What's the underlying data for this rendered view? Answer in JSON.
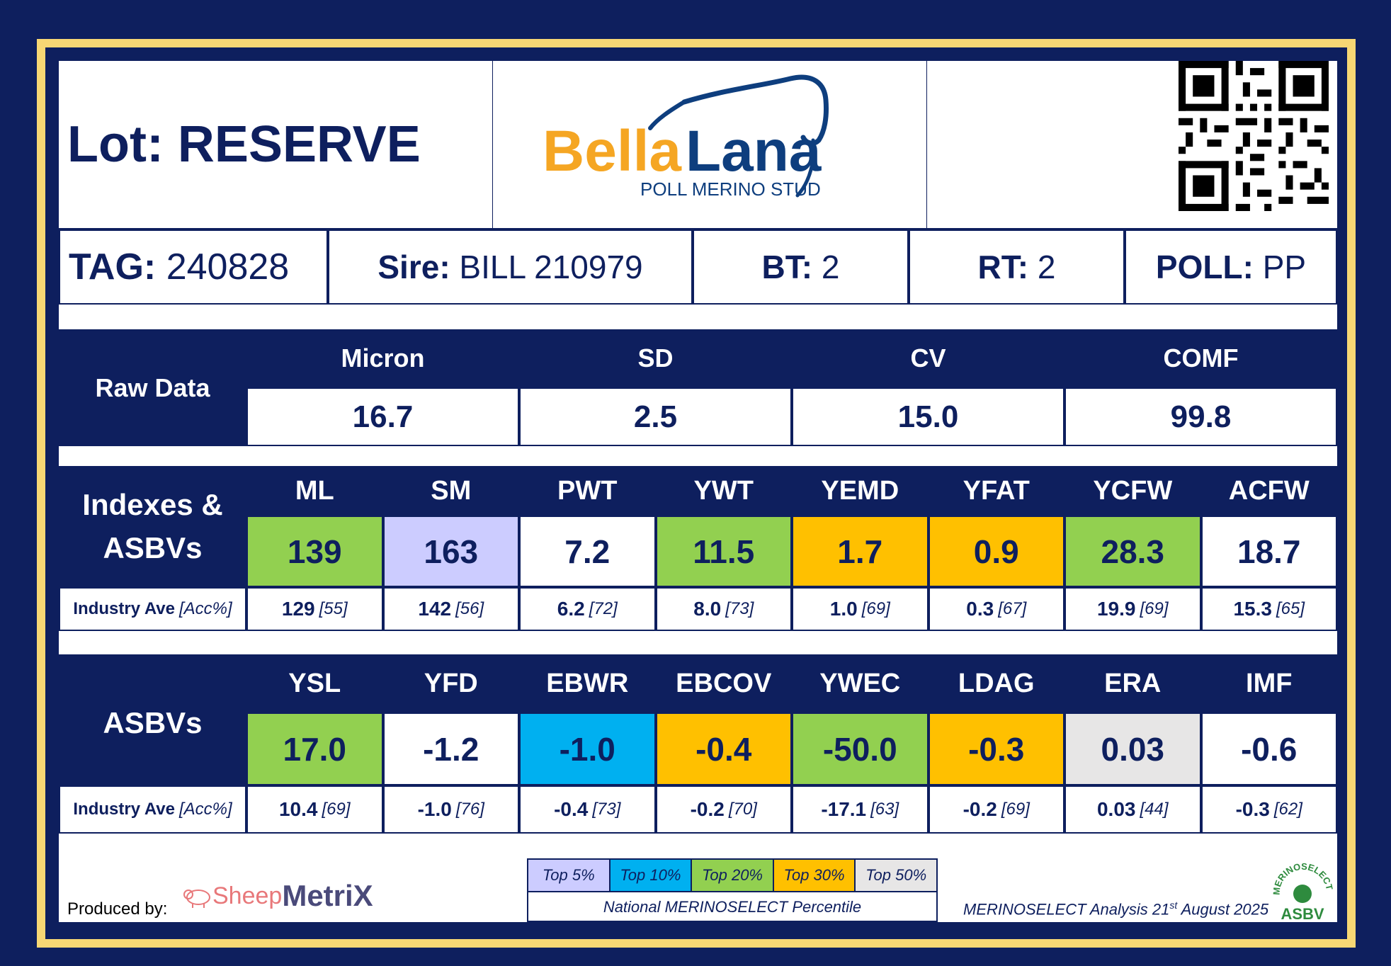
{
  "header": {
    "lot": "Lot: RESERVE",
    "logo": {
      "bella": "Bella",
      "lana": "Lana",
      "sub": "POLL MERINO STUD"
    }
  },
  "tag_row": [
    {
      "key": "TAG:",
      "value": "240828"
    },
    {
      "key": "Sire:",
      "value": "BILL 210979"
    },
    {
      "key": "BT:",
      "value": "2"
    },
    {
      "key": "RT:",
      "value": "2"
    },
    {
      "key": "POLL:",
      "value": "PP"
    }
  ],
  "raw_data": {
    "label": "Raw Data",
    "columns": [
      {
        "name": "Micron",
        "value": "16.7"
      },
      {
        "name": "SD",
        "value": "2.5"
      },
      {
        "name": "CV",
        "value": "15.0"
      },
      {
        "name": "COMF",
        "value": "99.8"
      }
    ]
  },
  "indexes": {
    "label_line1": "Indexes &",
    "label_line2": "ASBVs",
    "industry_label": "Industry Ave",
    "industry_acc": "[Acc%]",
    "columns": [
      {
        "name": "ML",
        "value": "139",
        "color": "#92d050",
        "ave": "129",
        "acc": "[55]"
      },
      {
        "name": "SM",
        "value": "163",
        "color": "#ccccff",
        "ave": "142",
        "acc": "[56]"
      },
      {
        "name": "PWT",
        "value": "7.2",
        "color": "#ffffff",
        "ave": "6.2",
        "acc": "[72]"
      },
      {
        "name": "YWT",
        "value": "11.5",
        "color": "#92d050",
        "ave": "8.0",
        "acc": "[73]"
      },
      {
        "name": "YEMD",
        "value": "1.7",
        "color": "#ffc000",
        "ave": "1.0",
        "acc": "[69]"
      },
      {
        "name": "YFAT",
        "value": "0.9",
        "color": "#ffc000",
        "ave": "0.3",
        "acc": "[67]"
      },
      {
        "name": "YCFW",
        "value": "28.3",
        "color": "#92d050",
        "ave": "19.9",
        "acc": "[69]"
      },
      {
        "name": "ACFW",
        "value": "18.7",
        "color": "#ffffff",
        "ave": "15.3",
        "acc": "[65]"
      }
    ]
  },
  "asbvs": {
    "label": "ASBVs",
    "industry_label": "Industry Ave",
    "industry_acc": "[Acc%]",
    "columns": [
      {
        "name": "YSL",
        "value": "17.0",
        "color": "#92d050",
        "ave": "10.4",
        "acc": "[69]"
      },
      {
        "name": "YFD",
        "value": "-1.2",
        "color": "#ffffff",
        "ave": "-1.0",
        "acc": "[76]"
      },
      {
        "name": "EBWR",
        "value": "-1.0",
        "color": "#00b0f0",
        "ave": "-0.4",
        "acc": "[73]"
      },
      {
        "name": "EBCOV",
        "value": "-0.4",
        "color": "#ffc000",
        "ave": "-0.2",
        "acc": "[70]"
      },
      {
        "name": "YWEC",
        "value": "-50.0",
        "color": "#92d050",
        "ave": "-17.1",
        "acc": "[63]"
      },
      {
        "name": "LDAG",
        "value": "-0.3",
        "color": "#ffc000",
        "ave": "-0.2",
        "acc": "[69]"
      },
      {
        "name": "ERA",
        "value": "0.03",
        "color": "#e7e6e6",
        "ave": "0.03",
        "acc": "[44]"
      },
      {
        "name": "IMF",
        "value": "-0.6",
        "color": "#ffffff",
        "ave": "-0.3",
        "acc": "[62]"
      }
    ]
  },
  "footer": {
    "produced_by": "Produced by:",
    "sm_sheep": "Sheep",
    "sm_metrix": "MetriX",
    "legend": [
      {
        "label": "Top 5%",
        "color": "#ccccff"
      },
      {
        "label": "Top 10%",
        "color": "#00b0f0"
      },
      {
        "label": "Top 20%",
        "color": "#92d050"
      },
      {
        "label": "Top 30%",
        "color": "#ffc000"
      },
      {
        "label": "Top 50%",
        "color": "#e7e6e6"
      }
    ],
    "legend_sub": "National MERINOSELECT Percentile",
    "analysis_pre": "MERINOSELECT Analysis 21",
    "analysis_sup": "st",
    "analysis_post": " August 2025",
    "badge_top": "MERINOSELECT",
    "badge_bottom": "ASBV"
  }
}
